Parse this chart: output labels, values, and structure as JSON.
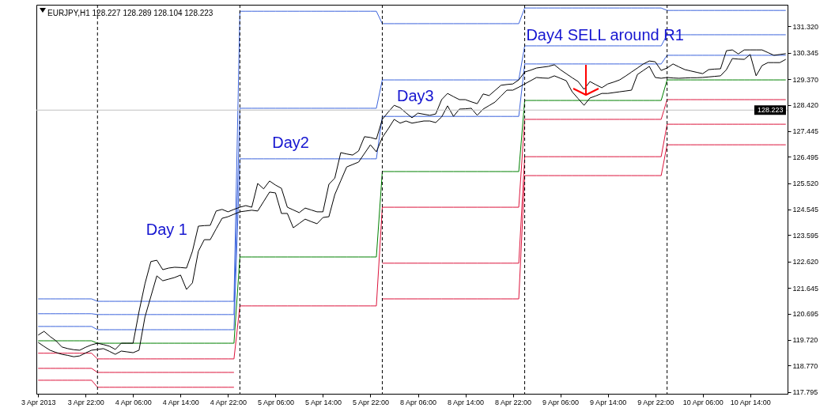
{
  "chart_data": {
    "type": "line",
    "title": "EURJPY,H1 128.227 128.289 128.104 128.223",
    "categories": [
      "3 Apr 2013",
      null,
      null,
      null,
      null,
      null,
      null,
      null,
      "3 Apr 22:00",
      null,
      null,
      null,
      null,
      null,
      null,
      null,
      "4 Apr 06:00",
      null,
      null,
      null,
      null,
      null,
      null,
      null,
      "4 Apr 14:00",
      null,
      null,
      null,
      null,
      null,
      null,
      null,
      "4 Apr 22:00",
      null,
      null,
      null,
      null,
      null,
      null,
      null,
      "5 Apr 06:00",
      null,
      null,
      null,
      null,
      null,
      null,
      null,
      "5 Apr 14:00",
      null,
      null,
      null,
      null,
      null,
      null,
      null,
      "5 Apr 22:00",
      null,
      null,
      null,
      null,
      null,
      null,
      null,
      "8 Apr 06:00",
      null,
      null,
      null,
      null,
      null,
      null,
      null,
      "8 Apr 14:00",
      null,
      null,
      null,
      null,
      null,
      null,
      null,
      "8 Apr 22:00",
      null,
      null,
      null,
      null,
      null,
      null,
      null,
      "9 Apr 06:00",
      null,
      null,
      null,
      null,
      null,
      null,
      null,
      "9 Apr 14:00",
      null,
      null,
      null,
      null,
      null,
      null,
      null,
      "9 Apr 22:00",
      null,
      null,
      null,
      null,
      null,
      null,
      null,
      "10 Apr 06:00",
      null,
      null,
      null,
      null,
      null,
      null,
      null,
      "10 Apr 14:00",
      null,
      null,
      null,
      null,
      null,
      null
    ],
    "ylim": [
      117.73,
      132.12
    ],
    "yticks": [
      117.795,
      {
        "value": 118.77,
        "label": "118.770"
      },
      {
        "value": 119.72,
        "label": "119.720"
      },
      120.695,
      121.645,
      {
        "value": 122.62,
        "label": "122.620"
      },
      123.595,
      124.545,
      {
        "value": 125.52,
        "label": "125.520"
      },
      126.495,
      127.445,
      {
        "value": 128.42,
        "label": "128.420"
      },
      {
        "value": 129.37,
        "label": "129.370"
      },
      130.345,
      {
        "value": 131.32,
        "label": "131.320"
      }
    ],
    "series": [
      {
        "color": "#3c64dc",
        "values": [
          121.24,
          121.24,
          121.24,
          121.24,
          121.24,
          121.24,
          121.24,
          121.24,
          121.24,
          121.24,
          121.15,
          121.15,
          121.15,
          121.15,
          121.15,
          121.15,
          121.15,
          121.15,
          121.15,
          121.15,
          121.15,
          121.15,
          121.15,
          121.15,
          121.15,
          121.15,
          121.15,
          121.15,
          121.15,
          121.15,
          121.15,
          121.15,
          121.15,
          121.15,
          131.88,
          131.88,
          131.88,
          131.88,
          131.88,
          131.88,
          131.88,
          131.88,
          131.88,
          131.88,
          131.88,
          131.88,
          131.88,
          131.88,
          131.88,
          131.88,
          131.88,
          131.88,
          131.88,
          131.88,
          131.88,
          131.88,
          131.88,
          131.88,
          131.42,
          131.42,
          131.42,
          131.42,
          131.42,
          131.42,
          131.42,
          131.42,
          131.42,
          131.42,
          131.42,
          131.42,
          131.42,
          131.42,
          131.42,
          131.42,
          131.42,
          131.42,
          131.42,
          131.42,
          131.42,
          131.42,
          131.42,
          131.42,
          132.0,
          132.0,
          132.0,
          132.0,
          132.0,
          132.0,
          132.0,
          132.0,
          132.0,
          132.0,
          132.0,
          132.0,
          132.0,
          132.0,
          132.0,
          132.0,
          132.0,
          132.0,
          132.0,
          132.0,
          132.0,
          132.0,
          132.0,
          132.0,
          131.91,
          131.91,
          131.91,
          131.91,
          131.91,
          131.91,
          131.91,
          131.91,
          131.91,
          131.91,
          131.91,
          131.91,
          131.91,
          131.91,
          131.91,
          131.91,
          131.91,
          131.91,
          131.91,
          131.91,
          131.91
        ]
      },
      {
        "color": "#3c64dc",
        "values": [
          120.69,
          120.69,
          120.69,
          120.69,
          120.69,
          120.69,
          120.69,
          120.69,
          120.69,
          120.69,
          120.66,
          120.66,
          120.66,
          120.66,
          120.66,
          120.66,
          120.66,
          120.66,
          120.66,
          120.66,
          120.66,
          120.66,
          120.66,
          120.66,
          120.66,
          120.66,
          120.66,
          120.66,
          120.66,
          120.66,
          120.66,
          120.66,
          120.66,
          120.66,
          128.29,
          128.29,
          128.29,
          128.29,
          128.29,
          128.29,
          128.29,
          128.29,
          128.29,
          128.29,
          128.29,
          128.29,
          128.29,
          128.29,
          128.29,
          128.29,
          128.29,
          128.29,
          128.29,
          128.29,
          128.29,
          128.29,
          128.29,
          128.29,
          129.34,
          129.34,
          129.34,
          129.34,
          129.34,
          129.34,
          129.34,
          129.34,
          129.34,
          129.34,
          129.34,
          129.34,
          129.34,
          129.34,
          129.34,
          129.34,
          129.34,
          129.34,
          129.34,
          129.34,
          129.34,
          129.34,
          129.34,
          129.34,
          130.6,
          130.6,
          130.6,
          130.6,
          130.6,
          130.6,
          130.6,
          130.6,
          130.6,
          130.6,
          130.6,
          130.6,
          130.6,
          130.6,
          130.6,
          130.6,
          130.6,
          130.6,
          130.6,
          130.6,
          130.6,
          130.6,
          130.6,
          130.6,
          131.01,
          131.01,
          131.01,
          131.01,
          131.01,
          131.01,
          131.01,
          131.01,
          131.01,
          131.01,
          131.01,
          131.01,
          131.01,
          131.01,
          131.01,
          131.01,
          131.01,
          131.01,
          131.01,
          131.01,
          131.01
        ]
      },
      {
        "color": "#3c64dc",
        "values": [
          120.22,
          120.22,
          120.22,
          120.22,
          120.22,
          120.22,
          120.22,
          120.22,
          120.22,
          120.22,
          120.1,
          120.1,
          120.1,
          120.1,
          120.1,
          120.1,
          120.1,
          120.1,
          120.1,
          120.1,
          120.1,
          120.1,
          120.1,
          120.1,
          120.1,
          120.1,
          120.1,
          120.1,
          120.1,
          120.1,
          120.1,
          120.1,
          120.1,
          120.1,
          126.42,
          126.42,
          126.42,
          126.42,
          126.42,
          126.42,
          126.42,
          126.42,
          126.42,
          126.42,
          126.42,
          126.42,
          126.42,
          126.42,
          126.42,
          126.42,
          126.42,
          126.42,
          126.42,
          126.42,
          126.42,
          126.42,
          126.42,
          126.42,
          127.99,
          127.99,
          127.99,
          127.99,
          127.99,
          127.99,
          127.99,
          127.99,
          127.99,
          127.99,
          127.99,
          127.99,
          127.99,
          127.99,
          127.99,
          127.99,
          127.99,
          127.99,
          127.99,
          127.99,
          127.99,
          127.99,
          127.99,
          127.99,
          129.93,
          129.93,
          129.93,
          129.93,
          129.93,
          129.93,
          129.93,
          129.93,
          129.93,
          129.93,
          129.93,
          129.93,
          129.93,
          129.93,
          129.93,
          129.93,
          129.93,
          129.93,
          129.93,
          129.93,
          129.93,
          129.93,
          129.93,
          129.93,
          130.25,
          130.25,
          130.25,
          130.25,
          130.25,
          130.25,
          130.25,
          130.25,
          130.25,
          130.25,
          130.25,
          130.25,
          130.25,
          130.25,
          130.25,
          130.25,
          130.25,
          130.25,
          130.25,
          130.25,
          130.25
        ]
      },
      {
        "color": "#008000",
        "values": [
          119.69,
          119.69,
          119.69,
          119.69,
          119.69,
          119.69,
          119.69,
          119.69,
          119.69,
          119.69,
          119.6,
          119.6,
          119.6,
          119.6,
          119.6,
          119.6,
          119.6,
          119.6,
          119.6,
          119.6,
          119.6,
          119.6,
          119.6,
          119.6,
          119.6,
          119.6,
          119.6,
          119.6,
          119.6,
          119.6,
          119.6,
          119.6,
          119.6,
          119.6,
          122.79,
          122.79,
          122.79,
          122.79,
          122.79,
          122.79,
          122.79,
          122.79,
          122.79,
          122.79,
          122.79,
          122.79,
          122.79,
          122.79,
          122.79,
          122.79,
          122.79,
          122.79,
          122.79,
          122.79,
          122.79,
          122.79,
          122.79,
          122.79,
          125.95,
          125.95,
          125.95,
          125.95,
          125.95,
          125.95,
          125.95,
          125.95,
          125.95,
          125.95,
          125.95,
          125.95,
          125.95,
          125.95,
          125.95,
          125.95,
          125.95,
          125.95,
          125.95,
          125.95,
          125.95,
          125.95,
          125.95,
          125.95,
          128.58,
          128.58,
          128.58,
          128.58,
          128.58,
          128.58,
          128.58,
          128.58,
          128.58,
          128.58,
          128.58,
          128.58,
          128.58,
          128.58,
          128.58,
          128.58,
          128.58,
          128.58,
          128.58,
          128.58,
          128.58,
          128.58,
          128.58,
          128.58,
          129.34,
          129.34,
          129.34,
          129.34,
          129.34,
          129.34,
          129.34,
          129.34,
          129.34,
          129.34,
          129.34,
          129.34,
          129.34,
          129.34,
          129.34,
          129.34,
          129.34,
          129.34,
          129.34,
          129.34,
          129.34
        ]
      },
      {
        "color": "#dc143c",
        "values": [
          119.23,
          119.23,
          119.23,
          119.23,
          119.23,
          119.23,
          119.23,
          119.23,
          119.23,
          119.23,
          119.02,
          119.02,
          119.02,
          119.02,
          119.02,
          119.02,
          119.02,
          119.02,
          119.02,
          119.02,
          119.02,
          119.02,
          119.02,
          119.02,
          119.02,
          119.02,
          119.02,
          119.02,
          119.02,
          119.02,
          119.02,
          119.02,
          119.02,
          119.02,
          120.98,
          120.98,
          120.98,
          120.98,
          120.98,
          120.98,
          120.98,
          120.98,
          120.98,
          120.98,
          120.98,
          120.98,
          120.98,
          120.98,
          120.98,
          120.98,
          120.98,
          120.98,
          120.98,
          120.98,
          120.98,
          120.98,
          120.98,
          120.98,
          124.63,
          124.63,
          124.63,
          124.63,
          124.63,
          124.63,
          124.63,
          124.63,
          124.63,
          124.63,
          124.63,
          124.63,
          124.63,
          124.63,
          124.63,
          124.63,
          124.63,
          124.63,
          124.63,
          124.63,
          124.63,
          124.63,
          124.63,
          124.63,
          127.88,
          127.88,
          127.88,
          127.88,
          127.88,
          127.88,
          127.88,
          127.88,
          127.88,
          127.88,
          127.88,
          127.88,
          127.88,
          127.88,
          127.88,
          127.88,
          127.88,
          127.88,
          127.88,
          127.88,
          127.88,
          127.88,
          127.88,
          127.88,
          128.61,
          128.61,
          128.61,
          128.61,
          128.61,
          128.61,
          128.61,
          128.61,
          128.61,
          128.61,
          128.61,
          128.61,
          128.61,
          128.61,
          128.61,
          128.61,
          128.61,
          128.61,
          128.61,
          128.61,
          128.61
        ]
      },
      {
        "color": "#dc143c",
        "values": [
          118.67,
          118.67,
          118.67,
          118.67,
          118.67,
          118.67,
          118.67,
          118.67,
          118.67,
          118.67,
          118.52,
          118.52,
          118.52,
          118.52,
          118.52,
          118.52,
          118.52,
          118.52,
          118.52,
          118.52,
          118.52,
          118.52,
          118.52,
          118.52,
          118.52,
          118.52,
          118.52,
          118.52,
          118.52,
          118.52,
          118.52,
          118.52,
          118.52,
          118.52,
          null,
          null,
          null,
          null,
          null,
          null,
          null,
          null,
          null,
          null,
          null,
          null,
          null,
          null,
          null,
          null,
          null,
          null,
          null,
          null,
          null,
          null,
          null,
          null,
          122.56,
          122.56,
          122.56,
          122.56,
          122.56,
          122.56,
          122.56,
          122.56,
          122.56,
          122.56,
          122.56,
          122.56,
          122.56,
          122.56,
          122.56,
          122.56,
          122.56,
          122.56,
          122.56,
          122.56,
          122.56,
          122.56,
          122.56,
          122.56,
          126.5,
          126.5,
          126.5,
          126.5,
          126.5,
          126.5,
          126.5,
          126.5,
          126.5,
          126.5,
          126.5,
          126.5,
          126.5,
          126.5,
          126.5,
          126.5,
          126.5,
          126.5,
          126.5,
          126.5,
          126.5,
          126.5,
          126.5,
          126.5,
          127.7,
          127.7,
          127.7,
          127.7,
          127.7,
          127.7,
          127.7,
          127.7,
          127.7,
          127.7,
          127.7,
          127.7,
          127.7,
          127.7,
          127.7,
          127.7,
          127.7,
          127.7,
          127.7,
          127.7,
          127.7
        ]
      },
      {
        "color": "#dc143c",
        "values": [
          118.23,
          118.23,
          118.23,
          118.23,
          118.23,
          118.23,
          118.23,
          118.23,
          118.23,
          118.23,
          117.97,
          117.97,
          117.97,
          117.97,
          117.97,
          117.97,
          117.97,
          117.97,
          117.97,
          117.97,
          117.97,
          117.97,
          117.97,
          117.97,
          117.97,
          117.97,
          117.97,
          117.97,
          117.97,
          117.97,
          117.97,
          117.97,
          117.97,
          117.97,
          null,
          null,
          null,
          null,
          null,
          null,
          null,
          null,
          null,
          null,
          null,
          null,
          null,
          null,
          null,
          null,
          null,
          null,
          null,
          null,
          null,
          null,
          null,
          null,
          121.24,
          121.24,
          121.24,
          121.24,
          121.24,
          121.24,
          121.24,
          121.24,
          121.24,
          121.24,
          121.24,
          121.24,
          121.24,
          121.24,
          121.24,
          121.24,
          121.24,
          121.24,
          121.24,
          121.24,
          121.24,
          121.24,
          121.24,
          121.24,
          125.8,
          125.8,
          125.8,
          125.8,
          125.8,
          125.8,
          125.8,
          125.8,
          125.8,
          125.8,
          125.8,
          125.8,
          125.8,
          125.8,
          125.8,
          125.8,
          125.8,
          125.8,
          125.8,
          125.8,
          125.8,
          125.8,
          125.8,
          125.8,
          126.94,
          126.94,
          126.94,
          126.94,
          126.94,
          126.94,
          126.94,
          126.94,
          126.94,
          126.94,
          126.94,
          126.94,
          126.94,
          126.94,
          126.94,
          126.94,
          126.94,
          126.94,
          126.94,
          126.94,
          126.94
        ]
      },
      {
        "color": "#000000",
        "values": [
          119.9,
          120.04,
          119.85,
          119.69,
          119.46,
          119.4,
          119.36,
          119.34,
          119.45,
          119.54,
          119.6,
          119.55,
          119.49,
          119.37,
          119.6,
          119.6,
          119.6,
          120.77,
          121.8,
          122.62,
          122.67,
          122.32,
          122.38,
          122.41,
          122.4,
          122.38,
          123.0,
          123.93,
          123.95,
          123.96,
          124.49,
          124.55,
          124.46,
          124.55,
          124.63,
          124.69,
          124.63,
          125.51,
          125.31,
          125.6,
          125.45,
          125.33,
          124.63,
          124.53,
          124.43,
          124.6,
          124.53,
          124.46,
          124.46,
          125.48,
          125.71,
          126.65,
          126.6,
          126.56,
          126.71,
          127.24,
          127.21,
          127.15,
          127.88,
          128.15,
          128.4,
          128.31,
          128.12,
          127.94,
          128.11,
          128.07,
          128.03,
          128.08,
          128.61,
          128.84,
          128.72,
          128.61,
          128.61,
          128.53,
          128.46,
          128.82,
          128.76,
          128.95,
          129.14,
          129.17,
          129.19,
          129.34,
          129.63,
          129.7,
          129.78,
          129.81,
          129.84,
          129.9,
          129.72,
          129.57,
          129.42,
          129.28,
          128.99,
          129.28,
          129.16,
          129.05,
          129.19,
          129.26,
          129.34,
          129.48,
          129.63,
          129.78,
          129.93,
          130.04,
          130.01,
          129.69,
          129.78,
          129.93,
          129.82,
          129.72,
          129.67,
          129.62,
          129.57,
          129.72,
          129.74,
          129.75,
          130.42,
          130.45,
          130.3,
          130.45,
          130.45,
          130.45,
          130.45,
          130.35,
          130.25,
          130.28,
          130.31
        ]
      },
      {
        "color": "#000000",
        "values": [
          119.63,
          119.48,
          119.34,
          119.26,
          119.19,
          119.15,
          119.1,
          119.13,
          119.24,
          119.34,
          119.37,
          119.4,
          119.3,
          119.19,
          119.31,
          119.28,
          119.25,
          119.34,
          120.57,
          121.33,
          122.09,
          121.91,
          121.97,
          122.03,
          122.12,
          121.59,
          121.83,
          123.0,
          123.43,
          123.43,
          123.83,
          124.22,
          124.28,
          124.37,
          124.46,
          124.49,
          124.52,
          124.49,
          124.84,
          125.19,
          125.16,
          124.4,
          124.4,
          123.87,
          124.03,
          124.19,
          124.1,
          124.02,
          124.25,
          124.28,
          125.1,
          125.61,
          126.12,
          126.21,
          126.3,
          126.62,
          126.94,
          126.68,
          127.21,
          127.53,
          127.88,
          127.74,
          127.82,
          127.74,
          127.78,
          127.82,
          127.82,
          127.76,
          127.97,
          128.38,
          127.99,
          128.26,
          128.27,
          128.29,
          128.03,
          128.26,
          128.39,
          128.52,
          128.74,
          128.96,
          128.96,
          129.07,
          129.19,
          129.31,
          129.43,
          129.41,
          129.4,
          129.49,
          129.4,
          129.31,
          128.9,
          128.65,
          128.4,
          128.67,
          128.75,
          128.84,
          128.84,
          128.87,
          128.9,
          128.93,
          128.96,
          129.54,
          129.69,
          129.84,
          129.43,
          129.4,
          129.43,
          129.41,
          129.4,
          129.41,
          129.42,
          129.42,
          129.43,
          129.45,
          129.47,
          129.49,
          129.72,
          130.13,
          130.11,
          130.1,
          130.28,
          129.49,
          129.87,
          129.98,
          129.98,
          129.98,
          130.1
        ]
      }
    ],
    "ref_lines": [
      {
        "axis": "y",
        "value": 128.223,
        "label": "128.223",
        "color": "#c0c0c0"
      }
    ],
    "annotations": [
      "Day 1",
      "Day2",
      "Day3",
      "Day4 SELL around R1"
    ]
  }
}
